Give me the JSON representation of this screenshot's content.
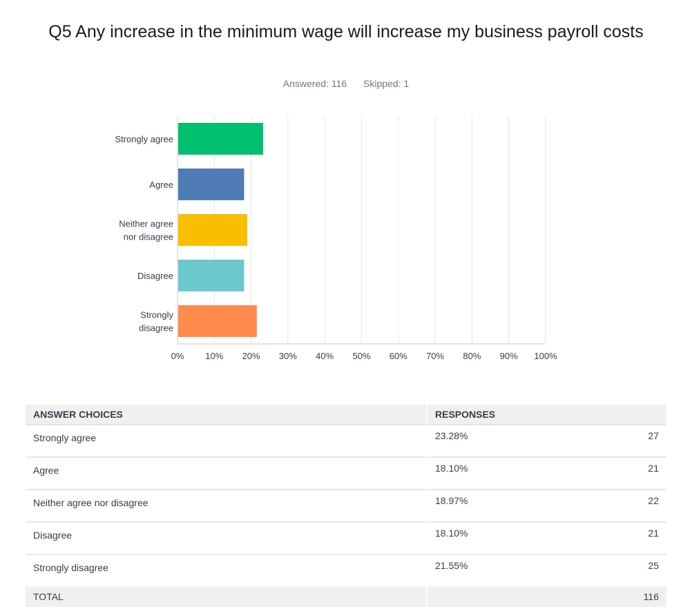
{
  "header": {
    "title": "Q5 Any increase in the minimum wage will increase my business payroll costs",
    "answered": "Answered: 116",
    "skipped": "Skipped: 1"
  },
  "chart_data": {
    "type": "bar",
    "orientation": "horizontal",
    "categories": [
      "Strongly agree",
      "Agree",
      "Neither agree nor disagree",
      "Disagree",
      "Strongly disagree"
    ],
    "category_label_lines": [
      [
        "Strongly agree"
      ],
      [
        "Agree"
      ],
      [
        "Neither agree",
        "nor disagree"
      ],
      [
        "Disagree"
      ],
      [
        "Strongly",
        "disagree"
      ]
    ],
    "values": [
      23.28,
      18.1,
      18.97,
      18.1,
      21.55
    ],
    "colors": [
      "#00bf6f",
      "#507cb6",
      "#f9be00",
      "#6bc8cd",
      "#ff8b4f"
    ],
    "xlim": [
      0,
      100
    ],
    "xticks": [
      "0%",
      "10%",
      "20%",
      "30%",
      "40%",
      "50%",
      "60%",
      "70%",
      "80%",
      "90%",
      "100%"
    ],
    "grid": true
  },
  "table": {
    "headers": {
      "choices": "ANSWER CHOICES",
      "responses": "RESPONSES"
    },
    "rows": [
      {
        "label": "Strongly agree",
        "percent": "23.28%",
        "count": "27"
      },
      {
        "label": "Agree",
        "percent": "18.10%",
        "count": "21"
      },
      {
        "label": "Neither agree nor disagree",
        "percent": "18.97%",
        "count": "22"
      },
      {
        "label": "Disagree",
        "percent": "18.10%",
        "count": "21"
      },
      {
        "label": "Strongly disagree",
        "percent": "21.55%",
        "count": "25"
      }
    ],
    "total": {
      "label": "TOTAL",
      "count": "116"
    }
  }
}
